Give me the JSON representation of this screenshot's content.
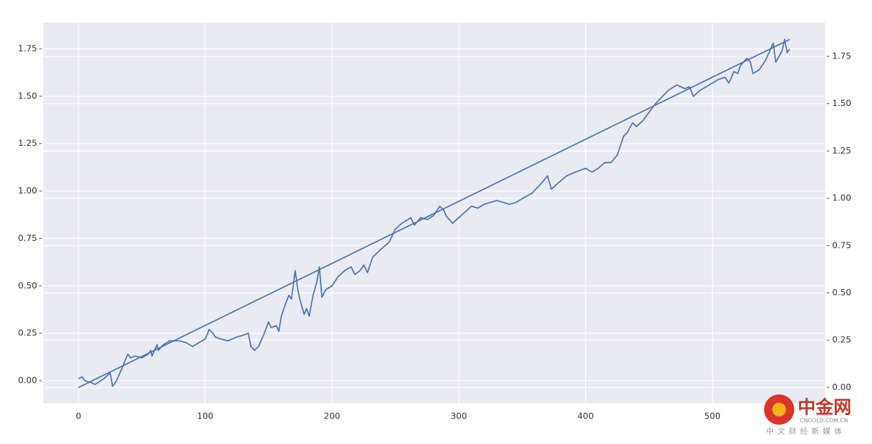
{
  "chart_data": {
    "type": "line",
    "background": "#eaeaf2",
    "grid": true,
    "xlim": [
      -27.7,
      589
    ],
    "xticks": [
      0,
      100,
      200,
      300,
      400,
      500
    ],
    "ylim": [
      -0.12,
      1.888
    ],
    "yticks": [
      {
        "value": 0,
        "label": "0.00"
      },
      {
        "value": 0.25,
        "label": "0.25"
      },
      {
        "value": 0.5,
        "label": "0.50"
      },
      {
        "value": 0.75,
        "label": "0.75"
      },
      {
        "value": 1,
        "label": "1.00"
      },
      {
        "value": 1.25,
        "label": "1.25"
      },
      {
        "value": 1.5,
        "label": "1.50"
      },
      {
        "value": 1.75,
        "label": "1.75"
      }
    ],
    "y2lim": [
      -0.084,
      1.928
    ],
    "y2ticks": [
      {
        "value": 0,
        "label": "0.00"
      },
      {
        "value": 0.25,
        "label": "0.25"
      },
      {
        "value": 0.5,
        "label": "0.50"
      },
      {
        "value": 0.75,
        "label": "0.75"
      },
      {
        "value": 1,
        "label": "1.00"
      },
      {
        "value": 1.25,
        "label": "1.25"
      },
      {
        "value": 1.5,
        "label": "1.50"
      },
      {
        "value": 1.75,
        "label": "1.75"
      }
    ],
    "series": [
      {
        "color": "#4c72b0",
        "x": [
          0,
          3,
          5,
          10,
          13,
          20,
          25,
          27,
          30,
          34,
          37,
          39,
          41,
          45,
          50,
          55,
          57,
          58,
          62,
          63,
          67,
          72,
          80,
          85,
          90,
          95,
          100,
          102,
          103,
          106,
          108,
          112,
          118,
          125,
          130,
          134,
          136,
          139,
          142,
          146,
          150,
          152,
          156,
          158,
          160,
          163,
          166,
          168,
          171,
          173,
          175,
          178,
          180,
          182,
          185,
          188,
          190,
          192,
          195,
          200,
          205,
          210,
          215,
          218,
          222,
          225,
          228,
          232,
          238,
          245,
          250,
          255,
          260,
          262,
          265,
          270,
          275,
          280,
          285,
          288,
          290,
          295,
          300,
          305,
          310,
          315,
          320,
          330,
          340,
          345,
          350,
          358,
          365,
          370,
          373,
          378,
          385,
          392,
          400,
          405,
          410,
          415,
          420,
          425,
          430,
          433,
          437,
          440,
          445,
          455,
          465,
          472,
          478,
          482,
          485,
          490,
          495,
          500,
          505,
          510,
          513,
          517,
          520,
          522,
          527,
          530,
          532,
          537,
          542,
          548,
          550,
          555,
          557,
          559,
          561
        ],
        "values": [
          0.01,
          0.02,
          0.0,
          -0.01,
          -0.02,
          0.01,
          0.04,
          -0.03,
          0.0,
          0.06,
          0.11,
          0.14,
          0.12,
          0.13,
          0.12,
          0.14,
          0.16,
          0.13,
          0.19,
          0.16,
          0.19,
          0.21,
          0.21,
          0.2,
          0.18,
          0.2,
          0.22,
          0.25,
          0.27,
          0.25,
          0.23,
          0.22,
          0.21,
          0.23,
          0.24,
          0.25,
          0.18,
          0.16,
          0.18,
          0.24,
          0.31,
          0.28,
          0.29,
          0.26,
          0.34,
          0.4,
          0.45,
          0.43,
          0.58,
          0.48,
          0.42,
          0.35,
          0.38,
          0.34,
          0.45,
          0.52,
          0.6,
          0.44,
          0.48,
          0.5,
          0.55,
          0.58,
          0.6,
          0.56,
          0.58,
          0.61,
          0.57,
          0.65,
          0.69,
          0.73,
          0.8,
          0.83,
          0.85,
          0.86,
          0.82,
          0.86,
          0.85,
          0.87,
          0.92,
          0.9,
          0.87,
          0.83,
          0.86,
          0.89,
          0.92,
          0.91,
          0.93,
          0.95,
          0.93,
          0.94,
          0.96,
          0.99,
          1.04,
          1.08,
          1.01,
          1.04,
          1.08,
          1.1,
          1.12,
          1.1,
          1.12,
          1.15,
          1.15,
          1.19,
          1.29,
          1.31,
          1.36,
          1.34,
          1.37,
          1.46,
          1.53,
          1.56,
          1.54,
          1.55,
          1.5,
          1.53,
          1.55,
          1.57,
          1.59,
          1.6,
          1.57,
          1.63,
          1.62,
          1.66,
          1.7,
          1.68,
          1.62,
          1.64,
          1.69,
          1.78,
          1.68,
          1.74,
          1.8,
          1.73,
          1.75
        ]
      },
      {
        "color": "#4c72b0",
        "axis": "y2",
        "x": [
          0,
          561
        ],
        "values": [
          0.0,
          1.84
        ]
      }
    ]
  },
  "watermark": {
    "name": "中金网",
    "url": "CNGOLD.COM.CN",
    "slogan": "中 文 财 经 新 媒 体"
  }
}
